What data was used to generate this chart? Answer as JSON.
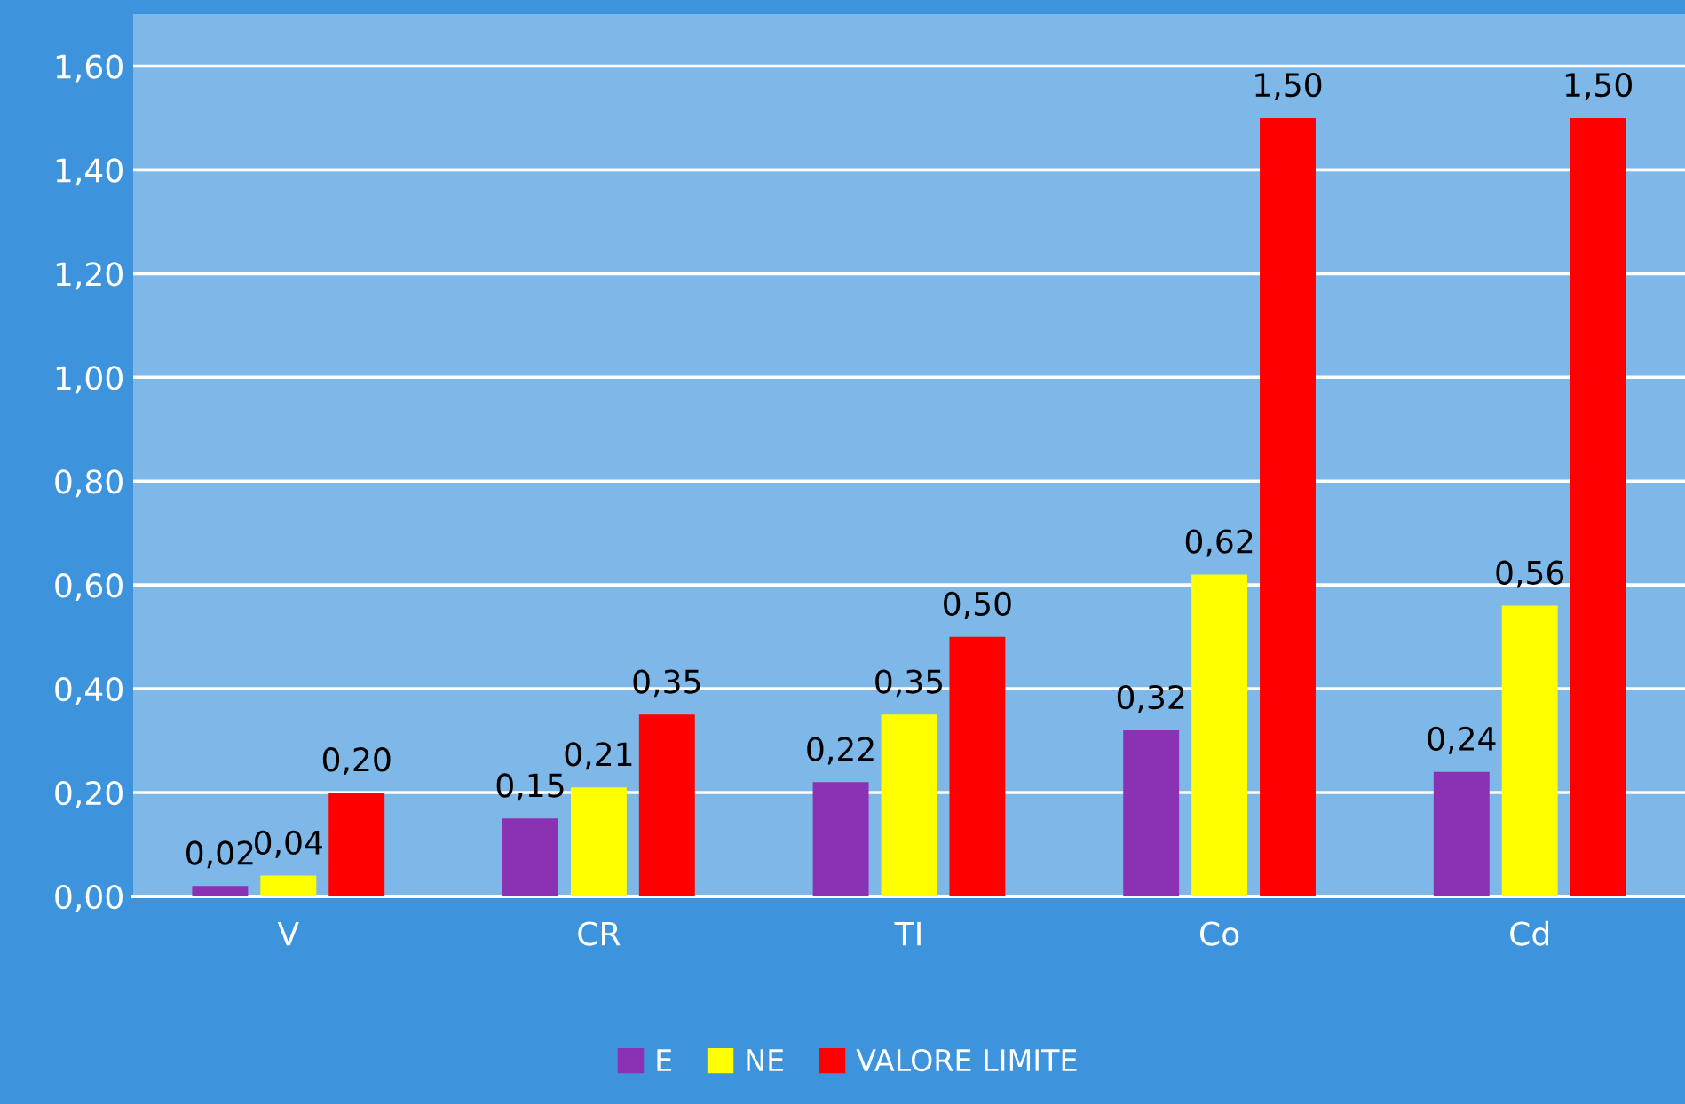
{
  "chart_data": {
    "type": "bar",
    "categories": [
      "V",
      "CR",
      "TI",
      "Co",
      "Cd"
    ],
    "series": [
      {
        "name": "E",
        "color": "#8b31b3",
        "values": [
          0.02,
          0.15,
          0.22,
          0.32,
          0.24
        ],
        "value_labels": [
          "0,02",
          "0,15",
          "0,22",
          "0,32",
          "0,24"
        ]
      },
      {
        "name": "NE",
        "color": "#ffff00",
        "values": [
          0.04,
          0.21,
          0.35,
          0.62,
          0.56
        ],
        "value_labels": [
          "0,04",
          "0,21",
          "0,35",
          "0,62",
          "0,56"
        ]
      },
      {
        "name": "VALORE LIMITE",
        "color": "#ff0000",
        "values": [
          0.2,
          0.35,
          0.5,
          1.5,
          1.5
        ],
        "value_labels": [
          "0,20",
          "0,35",
          "0,50",
          "1,50",
          "1,50"
        ]
      }
    ],
    "ylim": [
      0,
      1.7
    ],
    "yticks": [
      {
        "value": 0,
        "label": "0,00"
      },
      {
        "value": 0.2,
        "label": "0,20"
      },
      {
        "value": 0.4,
        "label": "0,40"
      },
      {
        "value": 0.6,
        "label": "0,60"
      },
      {
        "value": 0.8,
        "label": "0,80"
      },
      {
        "value": 1.0,
        "label": "1,00"
      },
      {
        "value": 1.2,
        "label": "1,20"
      },
      {
        "value": 1.4,
        "label": "1,40"
      },
      {
        "value": 1.6,
        "label": "1,60"
      }
    ],
    "grid": "y",
    "legend": "bottom"
  }
}
